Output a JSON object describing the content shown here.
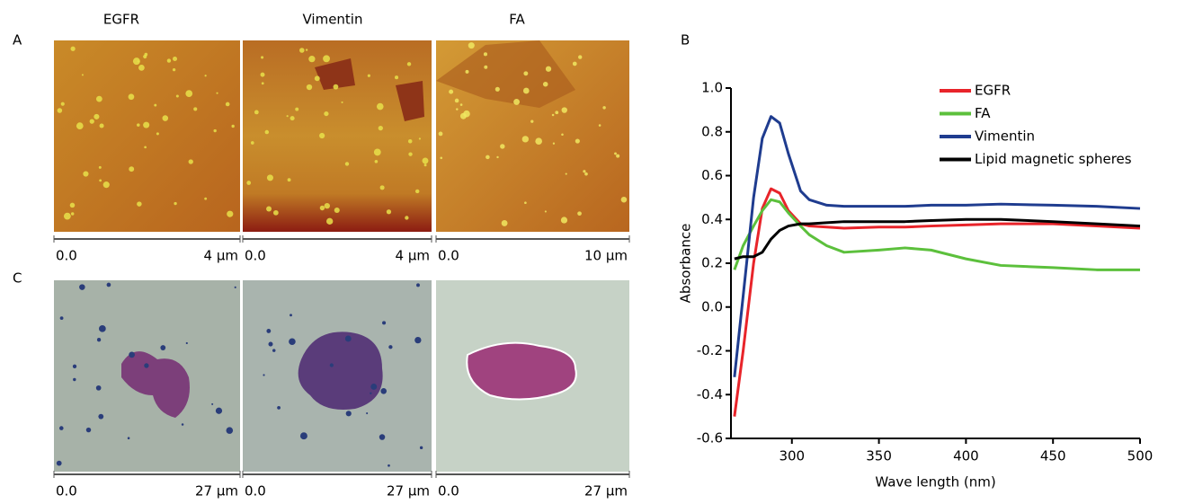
{
  "figure": {
    "panel_labels": [
      "A",
      "B",
      "C"
    ],
    "column_labels": [
      "EGFR",
      "Vimentin",
      "FA"
    ],
    "afm_scales": [
      {
        "start": "0.0",
        "end": "4 μm"
      },
      {
        "start": "0.0",
        "end": "4 μm"
      },
      {
        "start": "0.0",
        "end": "10 μm"
      }
    ],
    "stain_scales": [
      {
        "start": "0.0",
        "end": "27 μm"
      },
      {
        "start": "0.0",
        "end": "27 μm"
      },
      {
        "start": "0.0",
        "end": "27 μm"
      }
    ]
  },
  "chart_data": {
    "type": "line",
    "x_label": "Wave length (nm)",
    "y_label": "Absorbance",
    "x": [
      267,
      272,
      278,
      283,
      288,
      293,
      298,
      305,
      310,
      320,
      330,
      350,
      365,
      380,
      400,
      420,
      450,
      475,
      500
    ],
    "series": [
      {
        "name": "EGFR",
        "color": "#e8242a",
        "values": [
          -0.5,
          -0.2,
          0.2,
          0.45,
          0.54,
          0.52,
          0.44,
          0.38,
          0.37,
          0.365,
          0.36,
          0.365,
          0.365,
          0.37,
          0.375,
          0.38,
          0.38,
          0.37,
          0.36
        ]
      },
      {
        "name": "FA",
        "color": "#5cc03c",
        "values": [
          0.17,
          0.28,
          0.37,
          0.44,
          0.49,
          0.48,
          0.43,
          0.37,
          0.33,
          0.28,
          0.25,
          0.26,
          0.27,
          0.26,
          0.22,
          0.19,
          0.18,
          0.17,
          0.17
        ]
      },
      {
        "name": "Vimentin",
        "color": "#1f3c8f",
        "values": [
          -0.32,
          0.05,
          0.5,
          0.77,
          0.87,
          0.84,
          0.7,
          0.53,
          0.49,
          0.465,
          0.46,
          0.46,
          0.46,
          0.465,
          0.465,
          0.47,
          0.465,
          0.46,
          0.45
        ]
      },
      {
        "name": "Lipid magnetic spheres",
        "color": "#000000",
        "values": [
          0.22,
          0.23,
          0.23,
          0.25,
          0.31,
          0.35,
          0.37,
          0.38,
          0.38,
          0.385,
          0.39,
          0.39,
          0.39,
          0.395,
          0.4,
          0.4,
          0.39,
          0.38,
          0.37
        ]
      }
    ],
    "xlim": [
      265,
      500
    ],
    "xticks": [
      300,
      350,
      400,
      450,
      500
    ],
    "ylim": [
      -0.6,
      1
    ],
    "yticks": [
      {
        "value": -0.6,
        "label": "-0.6"
      },
      -0.4,
      -0.2,
      {
        "value": 0,
        "label": "0.0"
      },
      0.2,
      0.4,
      0.6,
      0.8,
      {
        "value": 1,
        "label": "1.0"
      }
    ]
  }
}
